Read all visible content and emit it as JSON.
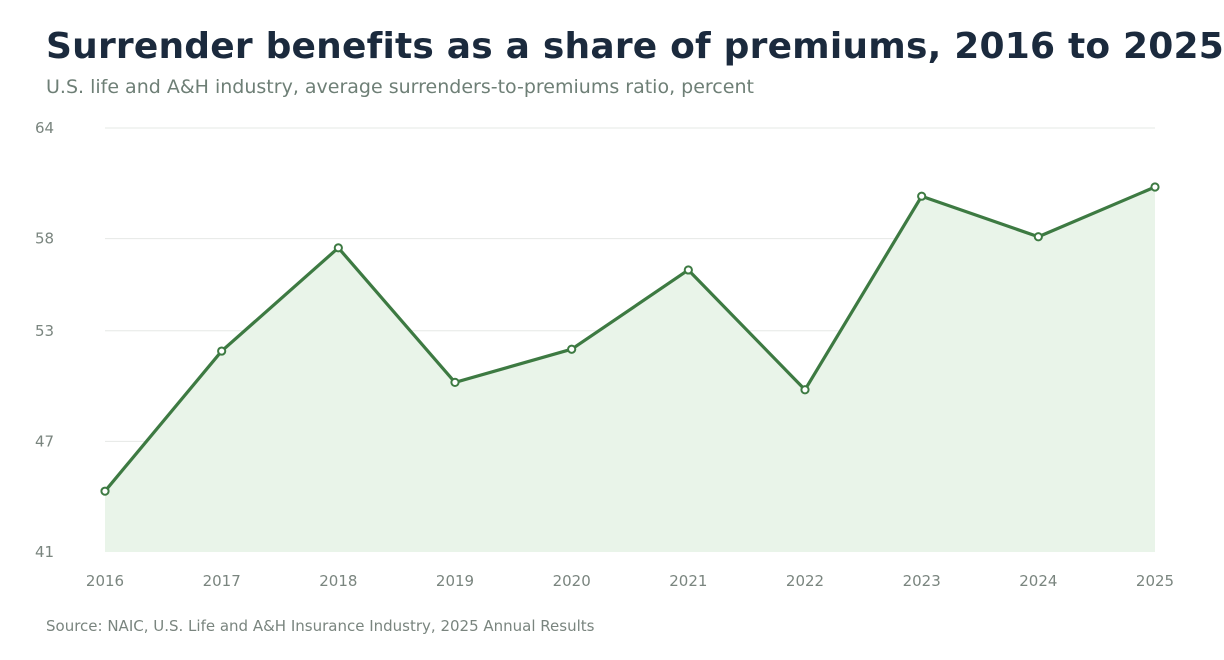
{
  "chart": {
    "title": "Surrender benefits as a share of premiums, 2016 to 2025",
    "subtitle": "U.S. life and A&H industry, average surrenders-to-premiums ratio, percent",
    "source": "Source: NAIC, U.S. Life and A&H Insurance Industry, 2025 Annual Results"
  },
  "colors": {
    "line": "#3d7a42",
    "area": "#e9f4e9",
    "grid": "#e6e8e6",
    "tick": "#7a857f",
    "title": "#1b2a3d"
  },
  "chart_data": {
    "type": "area",
    "title": "Surrender benefits as a share of premiums, 2016 to 2025",
    "subtitle": "U.S. life and A&H industry, average surrenders-to-premiums ratio, percent",
    "categories": [
      "2016",
      "2017",
      "2018",
      "2019",
      "2020",
      "2021",
      "2022",
      "2023",
      "2024",
      "2025"
    ],
    "series": [
      {
        "values": [
          44.3,
          51.9,
          57.5,
          50.2,
          52.0,
          56.3,
          49.8,
          60.3,
          58.1,
          60.8
        ]
      }
    ],
    "yticks": [
      "41",
      "47",
      "53",
      "58",
      "64"
    ],
    "ylim": [
      41,
      64
    ],
    "grid": true,
    "legend": "none",
    "markers": true
  }
}
